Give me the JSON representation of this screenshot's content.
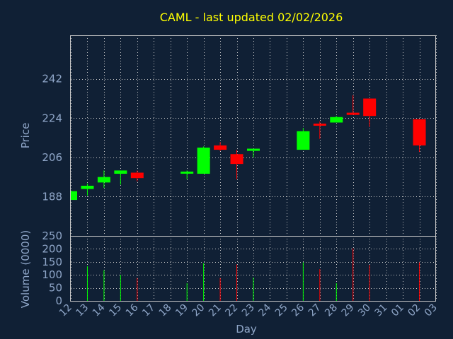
{
  "chart_data": {
    "type": "candlestick",
    "title": "CAML - last updated 02/02/2026",
    "xlabel": "Day",
    "price_panel": {
      "ylabel": "Price",
      "yticks": [
        188,
        206,
        224,
        242
      ],
      "ylim": [
        170,
        262
      ]
    },
    "volume_panel": {
      "ylabel": "Volume (0000)",
      "yticks": [
        0,
        50,
        100,
        150,
        200,
        250
      ],
      "ylim": [
        0,
        250
      ]
    },
    "x_tick_labels": [
      "12",
      "13",
      "14",
      "15",
      "16",
      "17",
      "18",
      "19",
      "20",
      "21",
      "22",
      "23",
      "24",
      "25",
      "26",
      "27",
      "28",
      "29",
      "30",
      "31",
      "01",
      "02",
      "03"
    ],
    "grid": true,
    "colors": {
      "background": "#102035",
      "up": "#00ff00",
      "down": "#ff0000",
      "title": "#ffff00",
      "axis_text": "#8fa6c8",
      "grid": "#c8c8c8"
    },
    "series": [
      {
        "day": "12",
        "open": 186.5,
        "high": 190.5,
        "low": 186.5,
        "close": 190.5,
        "volume": 0
      },
      {
        "day": "13",
        "open": 191.5,
        "high": 194.0,
        "low": 188.5,
        "close": 193.0,
        "volume": 133
      },
      {
        "day": "14",
        "open": 194.5,
        "high": 200.0,
        "low": 192.0,
        "close": 197.0,
        "volume": 118
      },
      {
        "day": "15",
        "open": 198.5,
        "high": 200.0,
        "low": 193.5,
        "close": 200.0,
        "volume": 100
      },
      {
        "day": "16",
        "open": 199.0,
        "high": 200.0,
        "low": 195.0,
        "close": 196.5,
        "volume": 88
      },
      {
        "day": "19",
        "open": 199.0,
        "high": 200.0,
        "low": 196.0,
        "close": 199.5,
        "volume": 68
      },
      {
        "day": "20",
        "open": 198.5,
        "high": 211.0,
        "low": 198.5,
        "close": 210.5,
        "volume": 145
      },
      {
        "day": "21",
        "open": 211.5,
        "high": 213.0,
        "low": 209.0,
        "close": 209.5,
        "volume": 88
      },
      {
        "day": "22",
        "open": 207.5,
        "high": 209.5,
        "low": 196.0,
        "close": 203.0,
        "volume": 140
      },
      {
        "day": "23",
        "open": 209.0,
        "high": 210.0,
        "low": 206.0,
        "close": 210.0,
        "volume": 90
      },
      {
        "day": "26",
        "open": 209.5,
        "high": 219.5,
        "low": 209.5,
        "close": 218.0,
        "volume": 148
      },
      {
        "day": "27",
        "open": 221.5,
        "high": 222.5,
        "low": 214.5,
        "close": 221.0,
        "volume": 122
      },
      {
        "day": "28",
        "open": 222.0,
        "high": 225.0,
        "low": 222.0,
        "close": 224.5,
        "volume": 68
      },
      {
        "day": "29",
        "open": 226.5,
        "high": 234.5,
        "low": 225.5,
        "close": 225.5,
        "volume": 202
      },
      {
        "day": "30",
        "open": 233.0,
        "high": 233.0,
        "low": 220.0,
        "close": 225.0,
        "volume": 138
      },
      {
        "day": "02",
        "open": 223.5,
        "high": 223.5,
        "low": 208.5,
        "close": 211.5,
        "volume": 148
      }
    ]
  }
}
